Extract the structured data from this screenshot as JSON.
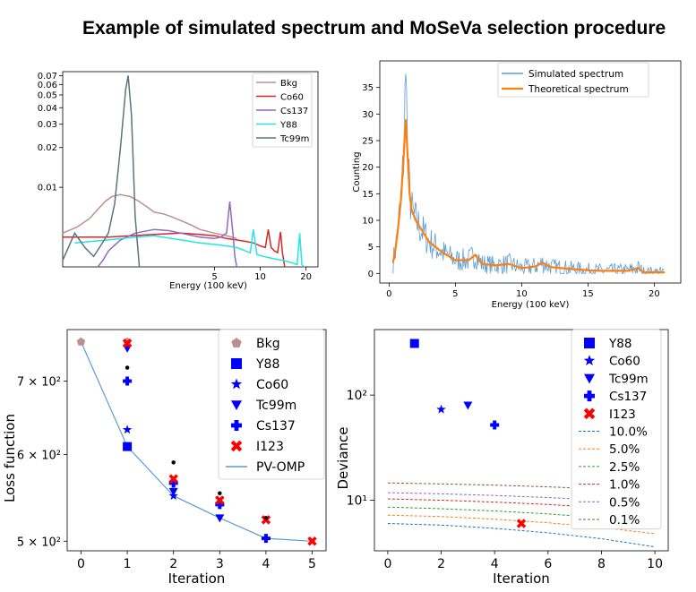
{
  "page": {
    "title": "Example of simulated spectrum and MoSeVa selection procedure"
  },
  "chart_data": [
    {
      "type": "line",
      "panel": "top-left",
      "xlabel": "Energy (100 keV)",
      "ylabel": "",
      "x_scale": "log",
      "y_scale": "log",
      "xlim": [
        0.5,
        24
      ],
      "ylim": [
        0.0025,
        0.075
      ],
      "xticks": [
        5,
        10,
        20
      ],
      "xtick_labels": [
        "5",
        "10",
        "20"
      ],
      "yticks": [
        0.01,
        0.02,
        0.03,
        0.04,
        0.05,
        0.06,
        0.07
      ],
      "ytick_labels": [
        "0.01",
        "0.02",
        "0.03",
        "0.04",
        "0.05",
        "0.06",
        "0.07"
      ],
      "legend": "top-right",
      "series": [
        {
          "name": "Bkg",
          "color": "#bc8f8f",
          "x": [
            0.5,
            0.62,
            0.75,
            0.85,
            0.95,
            1.05,
            1.2,
            1.4,
            1.6,
            1.8,
            2.0,
            2.3,
            2.6,
            3.0,
            3.5,
            4.0,
            5.0,
            6.0,
            7.0
          ],
          "y": [
            0.0045,
            0.005,
            0.0058,
            0.0068,
            0.0078,
            0.0085,
            0.0088,
            0.0085,
            0.0078,
            0.0071,
            0.0065,
            0.0063,
            0.006,
            0.0056,
            0.0052,
            0.0048,
            0.0045,
            0.0043,
            0.0041
          ]
        },
        {
          "name": "Co60",
          "color": "#d62728",
          "x": [
            0.5,
            1.0,
            2.0,
            3.0,
            4.0,
            5.0,
            6.0,
            7.0,
            8.0,
            9.0,
            10.0,
            10.8,
            11.3,
            11.8,
            12.4,
            13.0,
            13.6,
            14.0,
            14.5
          ],
          "y": [
            0.0042,
            0.0042,
            0.0044,
            0.0045,
            0.0044,
            0.0043,
            0.0041,
            0.004,
            0.0039,
            0.0038,
            0.0036,
            0.0035,
            0.0048,
            0.0035,
            0.0033,
            0.0032,
            0.0046,
            0.0032,
            0.0025
          ]
        },
        {
          "name": "Cs137",
          "color": "#9467bd",
          "x": [
            0.85,
            0.92,
            1.0,
            1.2,
            1.5,
            2.0,
            2.5,
            3.0,
            4.0,
            5.0,
            5.5,
            6.0,
            6.3,
            6.6,
            6.8,
            7.0
          ],
          "y": [
            0.0025,
            0.0028,
            0.0033,
            0.004,
            0.0045,
            0.0048,
            0.0047,
            0.0045,
            0.0042,
            0.0041,
            0.0042,
            0.0045,
            0.0078,
            0.0045,
            0.003,
            0.0025
          ]
        },
        {
          "name": "Y88",
          "color": "#22e6e6",
          "x": [
            0.6,
            1.0,
            1.5,
            2.0,
            3.0,
            4.0,
            5.0,
            6.0,
            7.0,
            8.0,
            8.6,
            9.0,
            9.5,
            10.5,
            12.0,
            14.0,
            16.0,
            17.5,
            18.2,
            18.8,
            19.5
          ],
          "y": [
            0.0038,
            0.004,
            0.0042,
            0.0043,
            0.004,
            0.0038,
            0.0037,
            0.0036,
            0.0035,
            0.0033,
            0.0032,
            0.0048,
            0.0031,
            0.003,
            0.0029,
            0.0028,
            0.0027,
            0.0026,
            0.0045,
            0.0026,
            0.0025
          ]
        },
        {
          "name": "Tc99m",
          "color": "#5c7380",
          "x": [
            0.5,
            0.6,
            0.7,
            0.8,
            0.9,
            1.0,
            1.1,
            1.2,
            1.3,
            1.35,
            1.42,
            1.5,
            1.6
          ],
          "y": [
            0.0028,
            0.0045,
            0.0035,
            0.003,
            0.0037,
            0.0045,
            0.0075,
            0.02,
            0.055,
            0.07,
            0.035,
            0.006,
            0.0025
          ]
        }
      ]
    },
    {
      "type": "line",
      "panel": "top-right",
      "xlabel": "Energy (100 keV)",
      "ylabel": "Counting",
      "xlim": [
        -0.7,
        22
      ],
      "ylim": [
        -1.8,
        40
      ],
      "xticks": [
        0,
        5,
        10,
        15,
        20
      ],
      "yticks": [
        0,
        5,
        10,
        15,
        20,
        25,
        30,
        35
      ],
      "legend": "top-right",
      "series": [
        {
          "name": "Simulated spectrum",
          "color": "#5b9bd5"
        },
        {
          "name": "Theoretical spectrum",
          "color": "#ff7f0e",
          "x": [
            0.3,
            0.5,
            0.7,
            0.9,
            1.1,
            1.25,
            1.4,
            1.55,
            1.7,
            2.0,
            2.5,
            3.0,
            3.5,
            4.0,
            5.0,
            6.0,
            6.5,
            7.0,
            8.0,
            9.0,
            10.0,
            11.0,
            11.6,
            12.2,
            13.0,
            14.0,
            15.0,
            16.0,
            17.0,
            18.0,
            18.8,
            19.2,
            20.0,
            20.8
          ],
          "y": [
            2,
            5,
            9,
            14,
            22,
            29,
            22,
            15,
            12,
            10,
            8,
            6,
            5,
            4,
            2.5,
            2.5,
            3.5,
            1.8,
            1.5,
            1.8,
            1.0,
            1.3,
            2.0,
            1.2,
            1.0,
            0.8,
            0.6,
            0.5,
            0.5,
            0.5,
            1.0,
            0.2,
            0.2,
            0.2
          ]
        }
      ]
    },
    {
      "type": "scatter",
      "panel": "bottom-left",
      "xlabel": "Iteration",
      "ylabel": "Loss function",
      "y_scale": "log",
      "xlim": [
        -0.3,
        5.3
      ],
      "ylim": [
        490,
        780
      ],
      "xticks": [
        0,
        1,
        2,
        3,
        4,
        5
      ],
      "ytick_labels": [
        "5 × 10²",
        "6 × 10²",
        "7 × 10²"
      ],
      "ytick_values": [
        500,
        600,
        700
      ],
      "legend": "top-right",
      "series": [
        {
          "name": "Bkg",
          "marker": "pentagon",
          "color": "#bc8f8f",
          "x": [
            0,
            1
          ],
          "y": [
            760,
            760
          ]
        },
        {
          "name": "Y88",
          "marker": "square",
          "color": "#0000ff",
          "x": [
            1
          ],
          "y": [
            610
          ]
        },
        {
          "name": "Co60",
          "marker": "star",
          "color": "#0000ff",
          "x": [
            1,
            2
          ],
          "y": [
            632,
            550
          ]
        },
        {
          "name": "Tc99m",
          "marker": "triangle-down",
          "color": "#0000ff",
          "x": [
            1,
            2,
            3
          ],
          "y": [
            750,
            555,
            525
          ]
        },
        {
          "name": "Cs137",
          "marker": "plus",
          "color": "#0000ff",
          "x": [
            1,
            2,
            3,
            4
          ],
          "y": [
            700,
            565,
            540,
            503
          ]
        },
        {
          "name": "I123",
          "marker": "x",
          "color": "#ff0000",
          "x": [
            1,
            2,
            3,
            4,
            5
          ],
          "y": [
            758,
            570,
            545,
            523,
            500
          ]
        },
        {
          "name": "PV-OMP",
          "marker": "line",
          "color": "#5b9bd5",
          "x": [
            0,
            1,
            2,
            3,
            4,
            5
          ],
          "y": [
            760,
            610,
            550,
            525,
            503,
            500
          ]
        },
        {
          "name": "",
          "marker": "dot",
          "color": "#000000",
          "x": [
            1,
            2,
            3,
            4
          ],
          "y": [
            720,
            590,
            553,
            525
          ]
        }
      ]
    },
    {
      "type": "scatter",
      "panel": "bottom-right",
      "xlabel": "Iteration",
      "ylabel": "Deviance",
      "y_scale": "log",
      "xlim": [
        -0.5,
        10.5
      ],
      "ylim": [
        3.3,
        420
      ],
      "xticks": [
        0,
        2,
        4,
        6,
        8,
        10
      ],
      "ytick_labels": [
        "10¹",
        "10²"
      ],
      "ytick_values": [
        10,
        100
      ],
      "legend": "top-right",
      "series": [
        {
          "name": "Y88",
          "marker": "square",
          "color": "#0000ff",
          "x": [
            1
          ],
          "y": [
            310
          ]
        },
        {
          "name": "Co60",
          "marker": "star",
          "color": "#0000ff",
          "x": [
            2
          ],
          "y": [
            73
          ]
        },
        {
          "name": "Tc99m",
          "marker": "triangle-down",
          "color": "#0000ff",
          "x": [
            3
          ],
          "y": [
            80
          ]
        },
        {
          "name": "Cs137",
          "marker": "plus",
          "color": "#0000ff",
          "x": [
            4
          ],
          "y": [
            52
          ]
        },
        {
          "name": "I123",
          "marker": "x",
          "color": "#ff0000",
          "x": [
            5
          ],
          "y": [
            6
          ]
        }
      ],
      "thresholds": [
        {
          "name": "10.0%",
          "color": "#1f77b4",
          "x": [
            0,
            2,
            4,
            6,
            8,
            10
          ],
          "y": [
            6.0,
            5.8,
            5.4,
            4.9,
            4.3,
            3.6
          ]
        },
        {
          "name": "5.0%",
          "color": "#ff7f0e",
          "x": [
            0,
            2,
            4,
            6,
            8,
            10
          ],
          "y": [
            7.2,
            7.0,
            6.6,
            6.1,
            5.5,
            4.8
          ]
        },
        {
          "name": "2.5%",
          "color": "#2ca02c",
          "x": [
            0,
            2,
            4,
            6,
            8,
            10
          ],
          "y": [
            8.6,
            8.3,
            7.9,
            7.4,
            6.8,
            6.1
          ]
        },
        {
          "name": "1.0%",
          "color": "#d62728",
          "x": [
            0,
            2,
            4,
            6,
            8,
            10
          ],
          "y": [
            10.3,
            10.0,
            9.6,
            9.1,
            8.5,
            7.8
          ]
        },
        {
          "name": "0.5%",
          "color": "#9467bd",
          "x": [
            0,
            2,
            4,
            6,
            8,
            10
          ],
          "y": [
            11.8,
            11.5,
            11.1,
            10.6,
            10.0,
            9.3
          ]
        },
        {
          "name": "0.1%",
          "color": "#8c564b",
          "x": [
            0,
            2,
            4,
            6,
            8,
            10
          ],
          "y": [
            14.6,
            14.3,
            13.9,
            13.4,
            12.8,
            12.1
          ]
        }
      ]
    }
  ]
}
